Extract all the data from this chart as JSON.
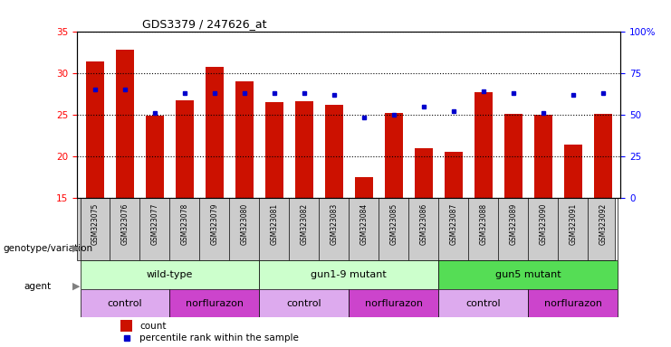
{
  "title": "GDS3379 / 247626_at",
  "samples": [
    "GSM323075",
    "GSM323076",
    "GSM323077",
    "GSM323078",
    "GSM323079",
    "GSM323080",
    "GSM323081",
    "GSM323082",
    "GSM323083",
    "GSM323084",
    "GSM323085",
    "GSM323086",
    "GSM323087",
    "GSM323088",
    "GSM323089",
    "GSM323090",
    "GSM323091",
    "GSM323092"
  ],
  "counts": [
    31.4,
    32.8,
    24.9,
    26.7,
    30.7,
    29.0,
    26.5,
    26.6,
    26.2,
    17.5,
    25.2,
    21.0,
    20.5,
    27.7,
    25.1,
    25.0,
    21.4,
    25.1
  ],
  "percentiles": [
    65,
    65,
    51,
    63,
    63,
    63,
    63,
    63,
    62,
    48,
    50,
    55,
    52,
    64,
    63,
    51,
    62,
    63
  ],
  "ylim_left": [
    15,
    35
  ],
  "ylim_right": [
    0,
    100
  ],
  "yticks_left": [
    15,
    20,
    25,
    30,
    35
  ],
  "yticks_right": [
    0,
    25,
    50,
    75,
    100
  ],
  "bar_color": "#cc1100",
  "dot_color": "#0000cc",
  "group_labels": [
    "wild-type",
    "gun1-9 mutant",
    "gun5 mutant"
  ],
  "group_starts": [
    0,
    6,
    12
  ],
  "group_ends": [
    5,
    11,
    17
  ],
  "group_colors": [
    "#ccffcc",
    "#ccffcc",
    "#55dd55"
  ],
  "agent_labels": [
    "control",
    "norflurazon",
    "control",
    "norflurazon",
    "control",
    "norflurazon"
  ],
  "agent_starts": [
    0,
    3,
    6,
    9,
    12,
    15
  ],
  "agent_ends": [
    2,
    5,
    8,
    11,
    14,
    17
  ],
  "agent_colors": [
    "#ddaaee",
    "#cc44cc",
    "#ddaaee",
    "#cc44cc",
    "#ddaaee",
    "#cc44cc"
  ],
  "genotype_label": "genotype/variation",
  "agent_label": "agent",
  "legend_count": "count",
  "legend_percentile": "percentile rank within the sample",
  "bar_width": 0.6
}
